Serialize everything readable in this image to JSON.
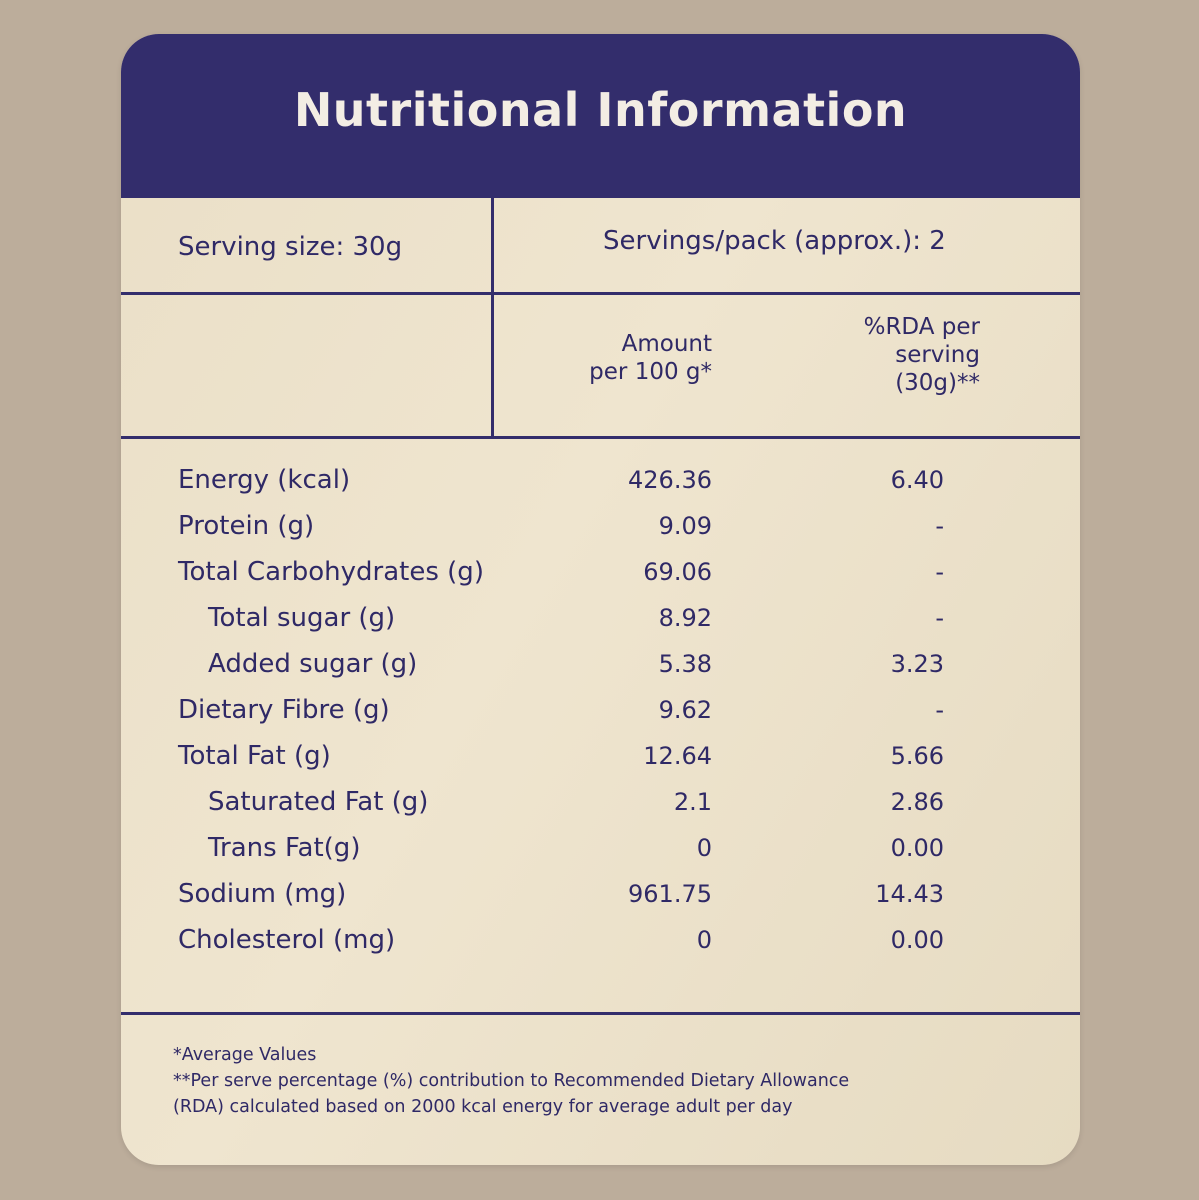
{
  "title": "Nutritional Information",
  "serving_size": "Serving size: 30g",
  "servings_per_pack": "Servings/pack (approx.): 2",
  "columns": {
    "amount": [
      "Amount",
      "per 100 g*"
    ],
    "rda": [
      "%RDA per",
      "serving",
      "(30g)**"
    ]
  },
  "rows": [
    {
      "name": "Energy (kcal)",
      "amount": "426.36",
      "rda": "6.40",
      "indent": 0
    },
    {
      "name": "Protein (g)",
      "amount": "9.09",
      "rda": "-",
      "indent": 0
    },
    {
      "name": "Total Carbohydrates (g)",
      "amount": "69.06",
      "rda": "-",
      "indent": 0
    },
    {
      "name": "Total sugar (g)",
      "amount": "8.92",
      "rda": "-",
      "indent": 1
    },
    {
      "name": "Added sugar (g)",
      "amount": "5.38",
      "rda": "3.23",
      "indent": 1
    },
    {
      "name": "Dietary Fibre (g)",
      "amount": "9.62",
      "rda": "-",
      "indent": 0
    },
    {
      "name": "Total Fat (g)",
      "amount": "12.64",
      "rda": "5.66",
      "indent": 0
    },
    {
      "name": "Saturated Fat (g)",
      "amount": "2.1",
      "rda": "2.86",
      "indent": 1
    },
    {
      "name": "Trans Fat(g)",
      "amount": "0",
      "rda": "0.00",
      "indent": 1
    },
    {
      "name": "Sodium (mg)",
      "amount": "961.75",
      "rda": "14.43",
      "indent": 0
    },
    {
      "name": "Cholesterol (mg)",
      "amount": "0",
      "rda": "0.00",
      "indent": 0
    }
  ],
  "footnotes": [
    "*Average Values",
    "**Per serve percentage (%) contribution to Recommended Dietary Allowance",
    "(RDA) calculated based on 2000 kcal energy for average adult per day"
  ],
  "colors": {
    "header": "#332d6c",
    "panel": "#ece2cb",
    "background": "#bcad9b",
    "text": "#2f2966",
    "title_text": "#f3ede4"
  }
}
